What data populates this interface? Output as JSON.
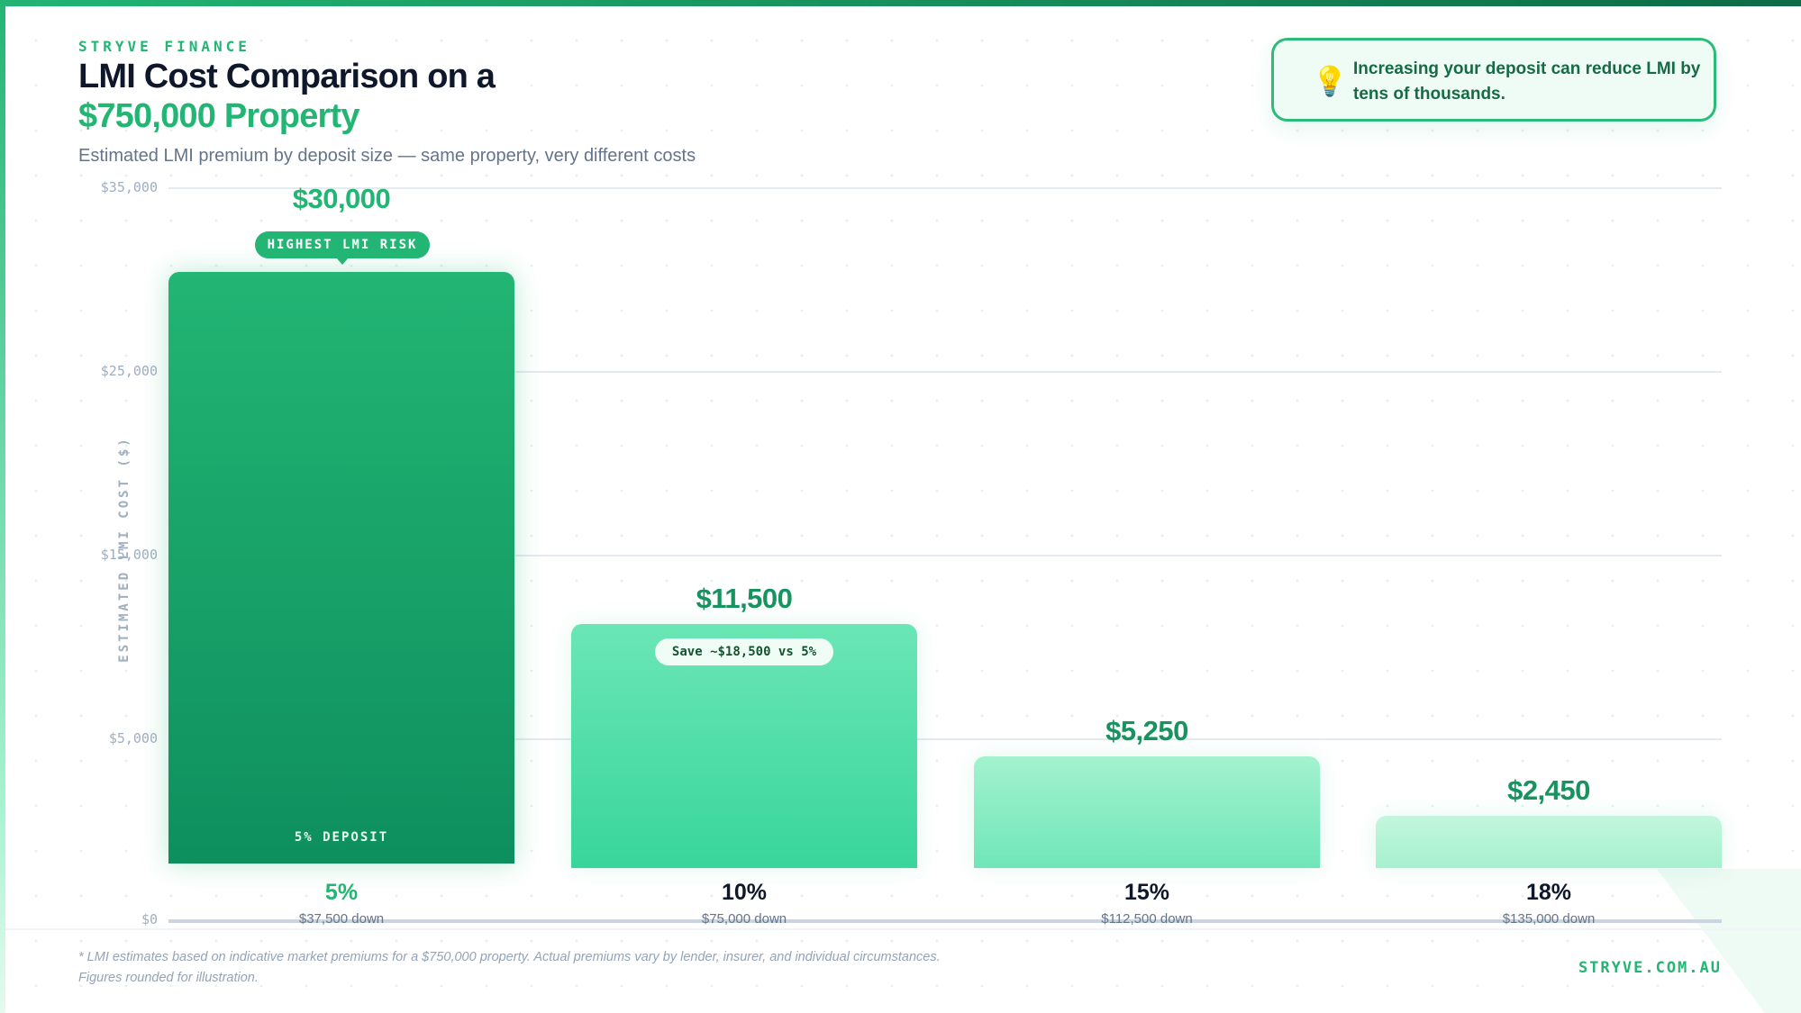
{
  "header": {
    "brand": "STRYVE FINANCE",
    "title_line1": "LMI Cost Comparison on a",
    "title_line2": "$750,000 Property",
    "subtitle": "Estimated LMI premium by deposit size — same property, very different costs"
  },
  "callout": {
    "icon": "lightbulb-icon",
    "text": "Increasing your deposit can reduce LMI by tens of thousands."
  },
  "chart_data": {
    "type": "bar",
    "title": "LMI Cost Comparison on a $750,000 Property",
    "ylabel": "ESTIMATED LMI COST ($)",
    "y_tick_labels": [
      "$35,000",
      "$25,000",
      "$15,000",
      "$5,000",
      "$0"
    ],
    "categories": [
      "5%",
      "10%",
      "15%",
      "18%"
    ],
    "sublabels": [
      "$37,500 down",
      "$75,000 down",
      "$112,500 down",
      "$135,000 down"
    ],
    "values": [
      30000,
      11500,
      5250,
      2450
    ],
    "value_labels": [
      "$30,000",
      "$11,500",
      "$5,250",
      "$2,450"
    ],
    "grid": true,
    "colors": [
      "#22b573",
      "#5fe3b0",
      "#94eec8",
      "#b8f5d8"
    ],
    "annotations": {
      "highest": "HIGHEST LMI RISK",
      "deposit": "5% DEPOSIT",
      "save": "Save ~$18,500 vs 5%"
    }
  },
  "footer": {
    "note_line1": "* LMI estimates based on indicative market premiums for a $750,000 property. Actual premiums vary by lender, insurer, and individual circumstances.",
    "note_line2": "Figures rounded for illustration.",
    "site": "STRYVE.COM.AU"
  }
}
